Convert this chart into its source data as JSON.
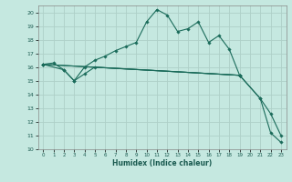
{
  "xlabel": "Humidex (Indice chaleur)",
  "ylabel": "",
  "bg_color": "#c5e8e0",
  "grid_color": "#aed0c8",
  "line_color": "#1a6b5a",
  "xlim": [
    -0.5,
    23.5
  ],
  "ylim": [
    10,
    20.5
  ],
  "yticks": [
    10,
    11,
    12,
    13,
    14,
    15,
    16,
    17,
    18,
    19,
    20
  ],
  "xticks": [
    0,
    1,
    2,
    3,
    4,
    5,
    6,
    7,
    8,
    9,
    10,
    11,
    12,
    13,
    14,
    15,
    16,
    17,
    18,
    19,
    20,
    21,
    22,
    23
  ],
  "lines": [
    {
      "x": [
        0,
        1,
        2,
        3,
        4,
        5,
        6,
        7,
        8,
        9,
        10,
        11,
        12,
        13,
        14,
        15,
        16,
        17,
        18,
        19
      ],
      "y": [
        16.2,
        16.3,
        15.8,
        15.0,
        16.0,
        16.5,
        16.8,
        17.2,
        17.5,
        17.8,
        19.3,
        20.2,
        19.8,
        18.6,
        18.8,
        19.3,
        17.8,
        18.3,
        17.3,
        15.4
      ]
    },
    {
      "x": [
        0,
        2,
        3,
        4,
        5,
        19
      ],
      "y": [
        16.2,
        15.8,
        15.0,
        15.5,
        16.0,
        15.4
      ]
    },
    {
      "x": [
        0,
        19,
        21,
        22,
        23
      ],
      "y": [
        16.2,
        15.4,
        13.7,
        12.6,
        11.0
      ]
    },
    {
      "x": [
        0,
        19,
        21,
        22,
        23
      ],
      "y": [
        16.2,
        15.4,
        13.7,
        11.2,
        10.5
      ]
    }
  ]
}
